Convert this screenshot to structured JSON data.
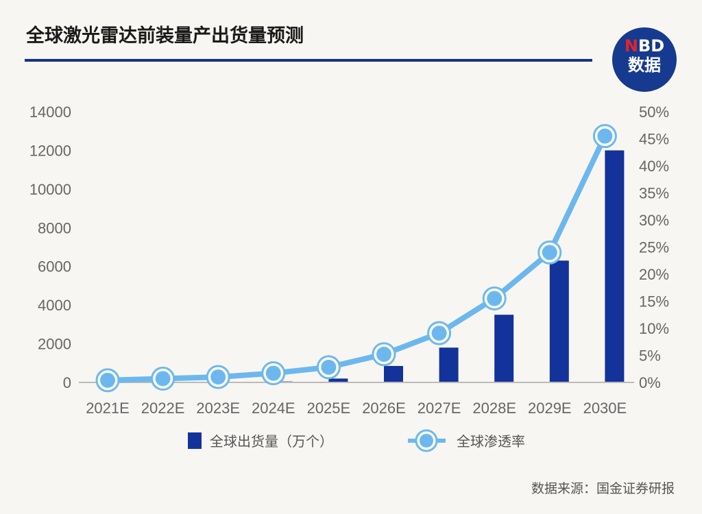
{
  "title": "全球激光雷达前装量产出货量预测",
  "logo": {
    "n": "N",
    "bd": "BD",
    "sub": "数据"
  },
  "source": "数据来源：国金证券研报",
  "colors": {
    "bar": "#13339a",
    "line": "#6cb8ee",
    "accent_rule": "#13328e"
  },
  "chart_data": {
    "type": "bar+line",
    "title": "全球激光雷达前装量产出货量预测",
    "categories": [
      "2021E",
      "2022E",
      "2023E",
      "2024E",
      "2025E",
      "2026E",
      "2027E",
      "2028E",
      "2029E",
      "2030E"
    ],
    "series": [
      {
        "name": "全球出货量（万个）",
        "type": "bar",
        "axis": "left",
        "values": [
          5,
          10,
          20,
          50,
          200,
          850,
          1800,
          3500,
          6300,
          12000
        ]
      },
      {
        "name": "全球渗透率",
        "type": "line",
        "axis": "right",
        "values": [
          0.4,
          0.7,
          1.0,
          1.7,
          2.8,
          5.2,
          9.1,
          15.5,
          24,
          45.5
        ]
      }
    ],
    "y_left": {
      "ylim": [
        0,
        14000
      ],
      "ticks": [
        "0",
        "2000",
        "4000",
        "6000",
        "8000",
        "10000",
        "12000",
        "14000"
      ]
    },
    "y_right": {
      "ylim": [
        0,
        50
      ],
      "ticks": [
        "0%",
        "5%",
        "10%",
        "15%",
        "20%",
        "25%",
        "30%",
        "35%",
        "40%",
        "45%",
        "50%"
      ]
    },
    "grid": false,
    "legend": "bottom"
  }
}
